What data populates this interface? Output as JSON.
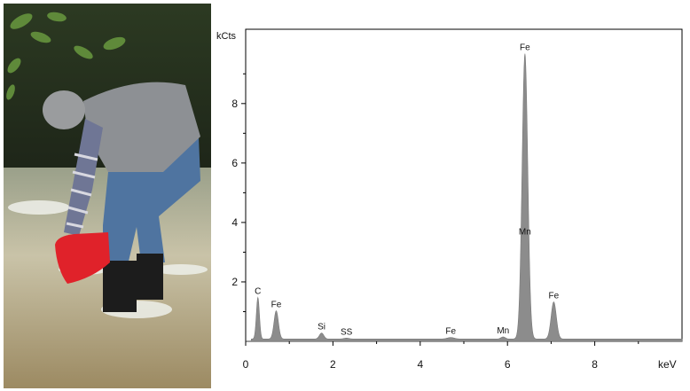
{
  "photo": {
    "subject": "person-filling-red-bucket-in-stream",
    "colors": {
      "water": "#b7b094",
      "foliage": "#2f4a24",
      "bucket": "#e0222a",
      "shirt": "#8d9094",
      "jeans": "#4f74a0",
      "boots": "#1c1c1c"
    }
  },
  "chart_data": {
    "type": "area",
    "title": "",
    "xlabel": "keV",
    "ylabel": "kCts",
    "xlim": [
      0,
      10
    ],
    "ylim": [
      0,
      10.5
    ],
    "x_ticks": [
      "0",
      "2",
      "4",
      "6",
      "8"
    ],
    "y_ticks": [
      "2",
      "4",
      "6",
      "8"
    ],
    "grid": false,
    "fill_color": "#8c8c8c",
    "baseline_kcts": 0.08,
    "peaks": [
      {
        "label": "C",
        "x": 0.28,
        "y": 1.4,
        "sigma": 0.035
      },
      {
        "label": "Fe",
        "x": 0.7,
        "y": 0.95,
        "sigma": 0.05
      },
      {
        "label": "Si",
        "x": 1.74,
        "y": 0.2,
        "sigma": 0.05
      },
      {
        "label": "SS",
        "x": 2.31,
        "y": 0.03,
        "sigma": 0.06
      },
      {
        "label": "Fe",
        "x": 4.7,
        "y": 0.05,
        "sigma": 0.08
      },
      {
        "label": "Mn",
        "x": 5.9,
        "y": 0.07,
        "sigma": 0.05
      },
      {
        "label": "Fe",
        "x": 6.4,
        "y": 9.6,
        "sigma": 0.065
      },
      {
        "label": "Mn",
        "x": 6.4,
        "y": 3.6,
        "sigma": 0.0
      },
      {
        "label": "Fe",
        "x": 7.06,
        "y": 1.25,
        "sigma": 0.06
      }
    ]
  }
}
